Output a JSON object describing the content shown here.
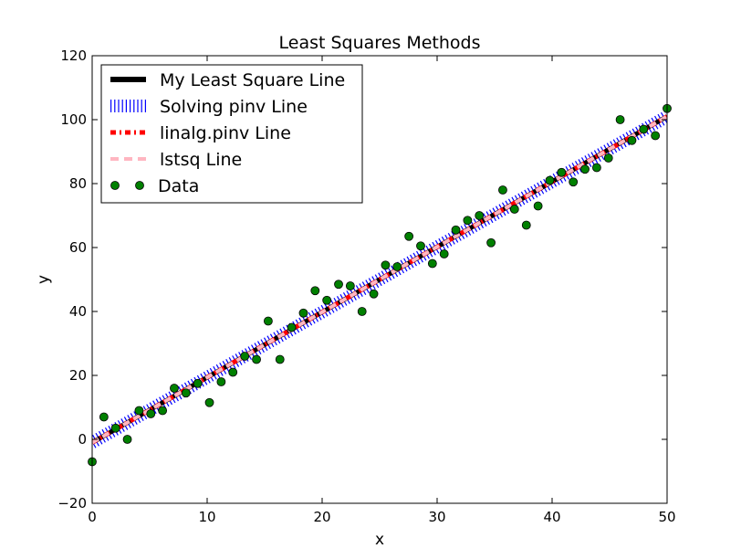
{
  "chart_data": {
    "type": "line",
    "title": "Least Squares Methods",
    "xlabel": "x",
    "ylabel": "y",
    "xlim": [
      0,
      50
    ],
    "ylim": [
      -20,
      120
    ],
    "xticks": [
      0,
      10,
      20,
      30,
      40,
      50
    ],
    "yticks": [
      -20,
      0,
      20,
      40,
      60,
      80,
      100,
      120
    ],
    "xtick_labels": [
      "0",
      "10",
      "20",
      "30",
      "40",
      "50"
    ],
    "ytick_labels": [
      "−20",
      "0",
      "20",
      "40",
      "60",
      "80",
      "100",
      "120"
    ],
    "grid": false,
    "legend_position": "upper-left",
    "legend": [
      {
        "label": "My Least Square Line",
        "style": "solid-thick",
        "color": "#000000"
      },
      {
        "label": "Solving pinv Line",
        "style": "vertical-hatch",
        "color": "#0000ff"
      },
      {
        "label": "linalg.pinv Line",
        "style": "dash-dot",
        "color": "#ff0000"
      },
      {
        "label": "lstsq Line",
        "style": "dashed",
        "color": "#ffb6c1"
      },
      {
        "label": "Data",
        "style": "marker",
        "color": "#008000"
      }
    ],
    "fit_lines": [
      {
        "name": "My Least Square Line",
        "x": [
          0,
          50
        ],
        "y": [
          -1.0,
          101.0
        ]
      },
      {
        "name": "Solving pinv Line",
        "x": [
          0,
          50
        ],
        "y": [
          -1.0,
          101.0
        ]
      },
      {
        "name": "linalg.pinv Line",
        "x": [
          0,
          50
        ],
        "y": [
          -1.0,
          101.0
        ]
      },
      {
        "name": "lstsq Line",
        "x": [
          0,
          50
        ],
        "y": [
          -1.0,
          101.0
        ]
      }
    ],
    "data_points": {
      "name": "Data",
      "x": [
        0,
        1.02,
        2.04,
        3.06,
        4.08,
        5.1,
        6.12,
        7.14,
        8.16,
        9.18,
        10.2,
        11.22,
        12.24,
        13.27,
        14.29,
        15.31,
        16.33,
        17.35,
        18.37,
        19.39,
        20.41,
        21.43,
        22.45,
        23.47,
        24.49,
        25.51,
        26.53,
        27.55,
        28.57,
        29.59,
        30.61,
        31.63,
        32.65,
        33.67,
        34.69,
        35.71,
        36.73,
        37.76,
        38.78,
        39.8,
        40.82,
        41.84,
        42.86,
        43.88,
        44.9,
        45.92,
        46.94,
        47.96,
        48.98,
        50.0
      ],
      "y": [
        -7,
        7,
        3.5,
        0,
        9,
        8,
        9,
        16,
        14.5,
        17.5,
        11.5,
        18,
        21,
        26,
        25,
        37,
        25,
        35,
        39.5,
        46.5,
        43.5,
        48.5,
        48,
        40,
        45.5,
        54.5,
        54,
        63.5,
        60.5,
        55,
        58,
        65.5,
        68.5,
        70,
        61.5,
        78,
        72,
        67,
        73,
        81,
        83.5,
        80.5,
        84.5,
        85,
        88,
        100,
        93.5,
        97,
        95,
        103.5
      ]
    }
  }
}
